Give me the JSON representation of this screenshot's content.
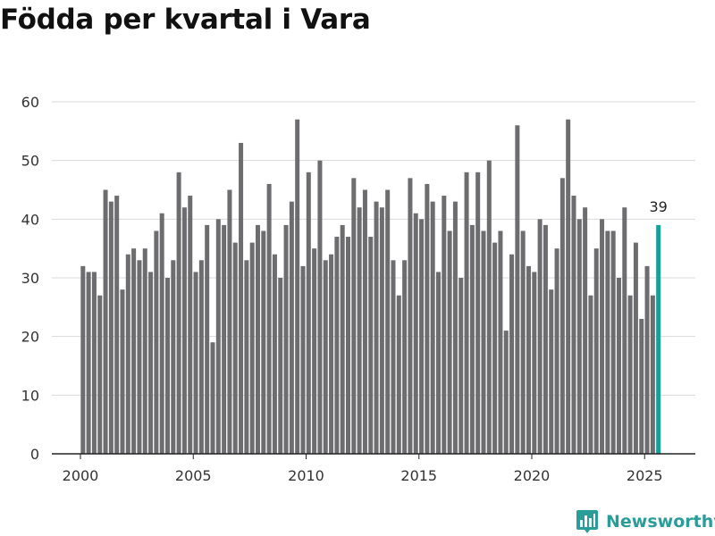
{
  "chart_data": {
    "type": "bar",
    "title": "Födda per kvartal i Vara",
    "xlabel": "",
    "ylabel": "",
    "ylim": [
      0,
      60
    ],
    "yticks": [
      0,
      10,
      20,
      30,
      40,
      50,
      60
    ],
    "xticks": [
      "2000",
      "2005",
      "2010",
      "2015",
      "2020",
      "2025"
    ],
    "grid": true,
    "start_year": 2000,
    "quarters_per_year": 4,
    "values": [
      32,
      31,
      31,
      27,
      45,
      43,
      44,
      28,
      34,
      35,
      33,
      35,
      31,
      38,
      41,
      30,
      33,
      48,
      42,
      44,
      31,
      33,
      39,
      19,
      40,
      39,
      45,
      36,
      53,
      33,
      36,
      39,
      38,
      46,
      34,
      30,
      39,
      43,
      57,
      32,
      48,
      35,
      50,
      33,
      34,
      37,
      39,
      37,
      47,
      42,
      45,
      37,
      43,
      42,
      45,
      33,
      27,
      33,
      47,
      41,
      40,
      46,
      43,
      31,
      44,
      38,
      43,
      30,
      48,
      39,
      48,
      38,
      50,
      36,
      38,
      21,
      34,
      56,
      38,
      32,
      31,
      40,
      39,
      28,
      35,
      47,
      57,
      44,
      40,
      42,
      27,
      35,
      40,
      38,
      38,
      30,
      42,
      27,
      36,
      23,
      32,
      27,
      39
    ],
    "highlight_label": "39",
    "colors": {
      "bar": "#6d6d70",
      "highlight": "#16a09a",
      "grid": "#d9d9d9",
      "axis": "#222222"
    }
  },
  "brand": {
    "name": "Newsworthy",
    "icon": "newsworthy-logo-icon",
    "color": "#2a9d99"
  }
}
